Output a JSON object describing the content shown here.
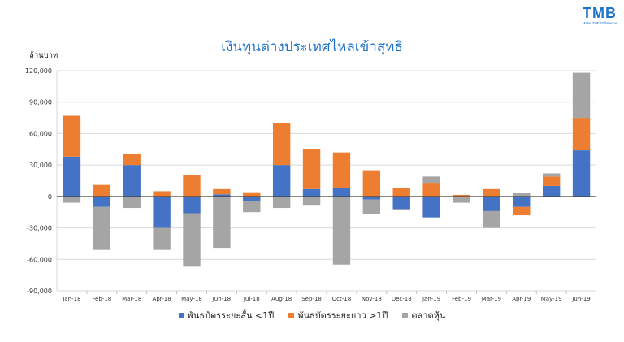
{
  "brand": {
    "logo_text": "TMB",
    "tagline": "Make THE Difference"
  },
  "chart_data": {
    "type": "bar",
    "stacked": true,
    "title": "เงินทุนต่างประเทศไหลเข้าสุทธิ",
    "ylabel": "ล้านบาท",
    "xlabel": "",
    "ylim": [
      -90000,
      120000
    ],
    "yticks": [
      120000,
      90000,
      60000,
      30000,
      0,
      -30000,
      -60000,
      -90000
    ],
    "ytick_labels": [
      "120,000",
      "90,000",
      "60,000",
      "30,000",
      "0",
      "-30,000",
      "-60,000",
      "-90,000"
    ],
    "grid": true,
    "legend_position": "bottom",
    "categories": [
      "Jan-18",
      "Feb-18",
      "Mar-18",
      "Apr-18",
      "May-18",
      "Jun-18",
      "Jul-18",
      "Aug-18",
      "Sep-18",
      "Oct-18",
      "Nov-18",
      "Dec-18",
      "Jan-19",
      "Feb-19",
      "Mar-19",
      "Apr-19",
      "May-19",
      "Jun-19"
    ],
    "series": [
      {
        "name": "พันธบัตรระยะสั้น <1ปี",
        "color": "#4472c4",
        "values": [
          38000,
          -10000,
          30000,
          -30000,
          -16000,
          2000,
          -4000,
          30000,
          7000,
          8000,
          -3000,
          -12000,
          -20000,
          -1000,
          -14000,
          -10000,
          10000,
          44000
        ]
      },
      {
        "name": "พันธบัตรระยะยาว >1ปี",
        "color": "#ed7d31",
        "values": [
          39000,
          11000,
          11000,
          5000,
          20000,
          5000,
          4000,
          40000,
          38000,
          34000,
          25000,
          8000,
          13000,
          1500,
          7000,
          -8000,
          9000,
          31000
        ]
      },
      {
        "name": "ตลาดหุ้น",
        "color": "#a5a5a5",
        "values": [
          -6000,
          -41000,
          -11000,
          -21000,
          -51000,
          -49000,
          -11000,
          -11000,
          -8000,
          -65000,
          -14000,
          -1000,
          6000,
          -5000,
          -16000,
          3000,
          3000,
          43000
        ]
      }
    ]
  }
}
